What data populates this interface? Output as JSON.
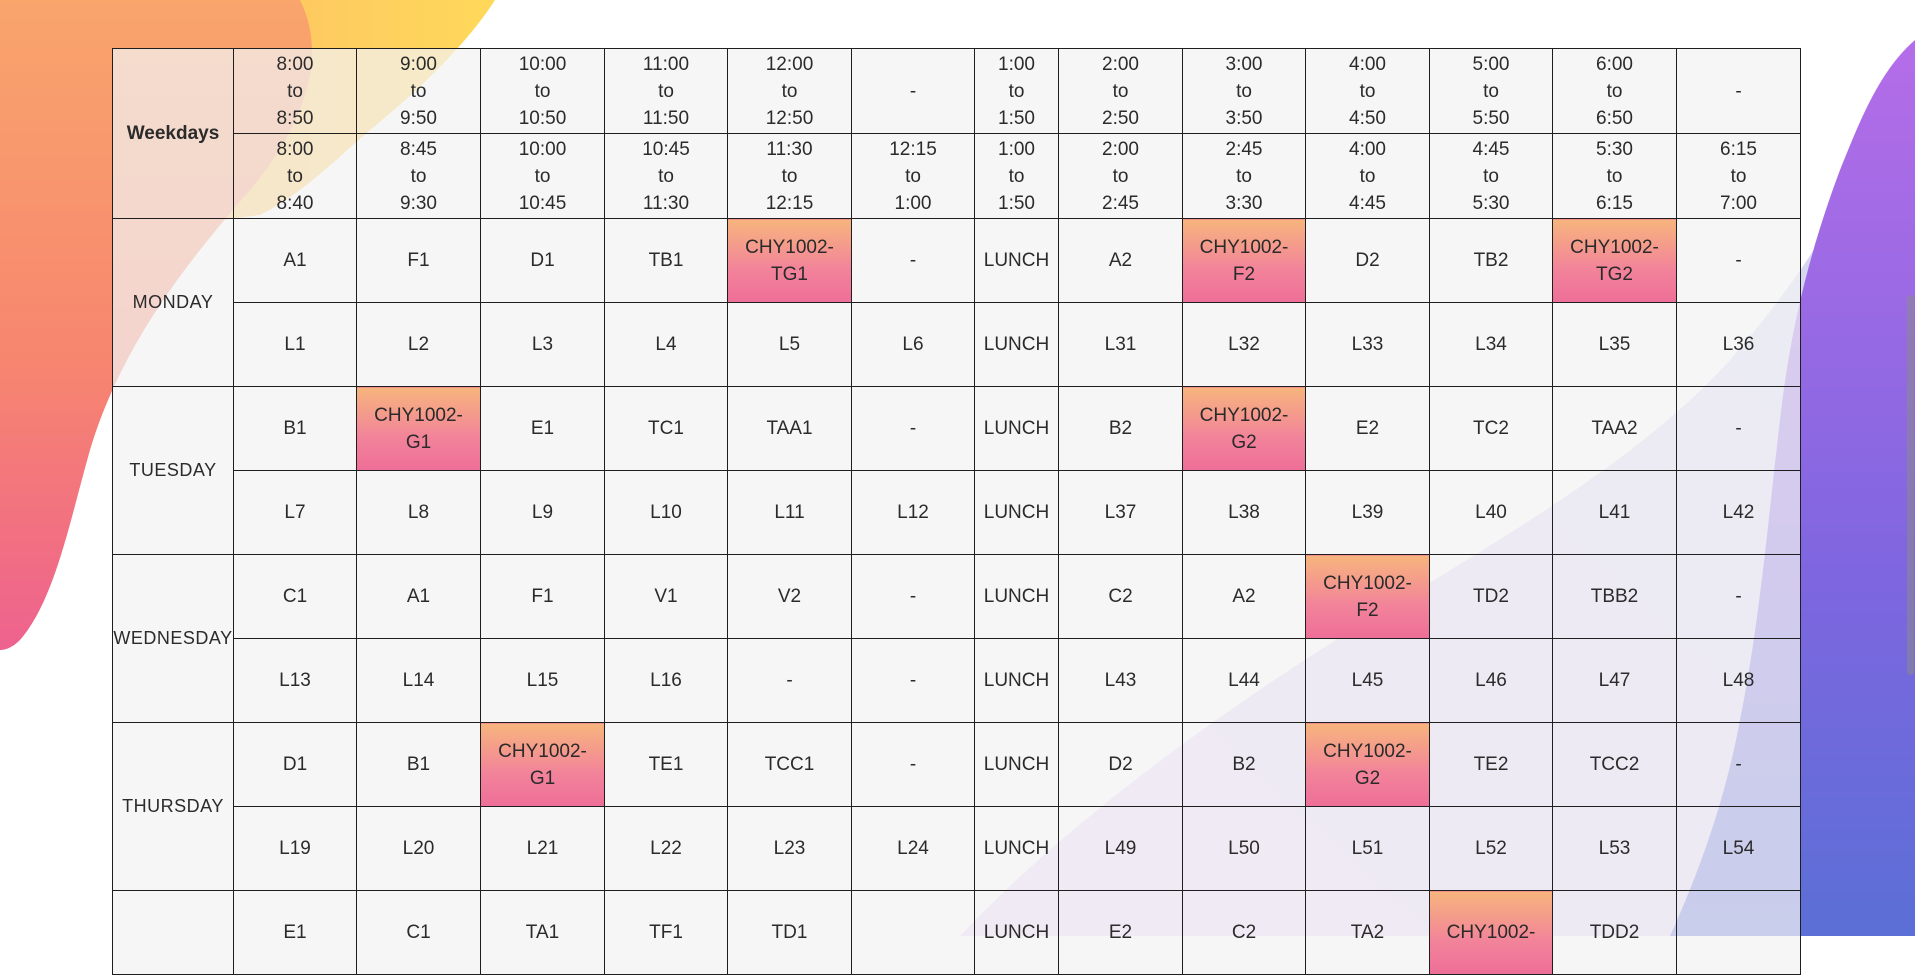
{
  "header": {
    "weekdays_label": "Weekdays",
    "theory_times": [
      "8:00\nto\n8:50",
      "9:00\nto\n9:50",
      "10:00\nto\n10:50",
      "11:00\nto\n11:50",
      "12:00\nto\n12:50",
      "-",
      "1:00\nto\n1:50",
      "2:00\nto\n2:50",
      "3:00\nto\n3:50",
      "4:00\nto\n4:50",
      "5:00\nto\n5:50",
      "6:00\nto\n6:50",
      "-"
    ],
    "lab_times": [
      "8:00\nto\n8:40",
      "8:45\nto\n9:30",
      "10:00\nto\n10:45",
      "10:45\nto\n11:30",
      "11:30\nto\n12:15",
      "12:15\nto\n1:00",
      "1:00\nto\n1:50",
      "2:00\nto\n2:45",
      "2:45\nto\n3:30",
      "4:00\nto\n4:45",
      "4:45\nto\n5:30",
      "5:30\nto\n6:15",
      "6:15\nto\n7:00"
    ]
  },
  "days": [
    {
      "name": "MONDAY",
      "theory": [
        "A1",
        "F1",
        "D1",
        "TB1",
        "CHY1002-\nTG1",
        "-",
        "LUNCH",
        "A2",
        "CHY1002-\nF2",
        "D2",
        "TB2",
        "CHY1002-\nTG2",
        "-"
      ],
      "theory_highlight": [
        4,
        8,
        11
      ],
      "lab": [
        "L1",
        "L2",
        "L3",
        "L4",
        "L5",
        "L6",
        "LUNCH",
        "L31",
        "L32",
        "L33",
        "L34",
        "L35",
        "L36"
      ],
      "lab_highlight": []
    },
    {
      "name": "TUESDAY",
      "theory": [
        "B1",
        "CHY1002-\nG1",
        "E1",
        "TC1",
        "TAA1",
        "-",
        "LUNCH",
        "B2",
        "CHY1002-\nG2",
        "E2",
        "TC2",
        "TAA2",
        "-"
      ],
      "theory_highlight": [
        1,
        8
      ],
      "lab": [
        "L7",
        "L8",
        "L9",
        "L10",
        "L11",
        "L12",
        "LUNCH",
        "L37",
        "L38",
        "L39",
        "L40",
        "L41",
        "L42"
      ],
      "lab_highlight": []
    },
    {
      "name": "WEDNESDAY",
      "theory": [
        "C1",
        "A1",
        "F1",
        "V1",
        "V2",
        "-",
        "LUNCH",
        "C2",
        "A2",
        "CHY1002-\nF2",
        "TD2",
        "TBB2",
        "-"
      ],
      "theory_highlight": [
        9
      ],
      "lab": [
        "L13",
        "L14",
        "L15",
        "L16",
        "-",
        "-",
        "LUNCH",
        "L43",
        "L44",
        "L45",
        "L46",
        "L47",
        "L48"
      ],
      "lab_highlight": []
    },
    {
      "name": "THURSDAY",
      "theory": [
        "D1",
        "B1",
        "CHY1002-\nG1",
        "TE1",
        "TCC1",
        "-",
        "LUNCH",
        "D2",
        "B2",
        "CHY1002-\nG2",
        "TE2",
        "TCC2",
        "-"
      ],
      "theory_highlight": [
        2,
        9
      ],
      "lab": [
        "L19",
        "L20",
        "L21",
        "L22",
        "L23",
        "L24",
        "LUNCH",
        "L49",
        "L50",
        "L51",
        "L52",
        "L53",
        "L54"
      ],
      "lab_highlight": []
    },
    {
      "name": "",
      "theory": [
        "E1",
        "C1",
        "TA1",
        "TF1",
        "TD1",
        "",
        "LUNCH",
        "E2",
        "C2",
        "TA2",
        "CHY1002-",
        "TDD2",
        ""
      ],
      "theory_highlight": [
        10
      ],
      "lab": [],
      "lab_highlight": []
    }
  ],
  "colors": {
    "highlight_top": "#f7b57d",
    "highlight_bottom": "#ee6e98",
    "blob_orange": "#f8a46a",
    "blob_pink": "#f06b8f",
    "blob_purple": "#8f63e6",
    "blob_blue": "#5b74d6"
  }
}
